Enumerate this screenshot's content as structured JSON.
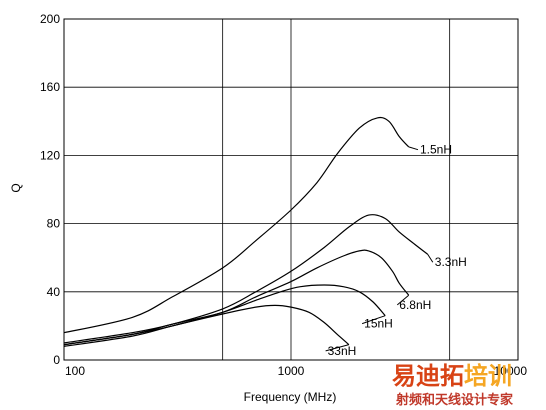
{
  "chart_data": {
    "type": "line",
    "xscale": "log",
    "xlim": [
      100,
      10000
    ],
    "ylim": [
      0,
      200
    ],
    "xlabel": "Frequency (MHz)",
    "ylabel": "Q",
    "x_ticks": [
      100,
      1000,
      10000
    ],
    "x_tick_labels": [
      "100",
      "1000",
      "10000"
    ],
    "y_ticks": [
      0,
      40,
      80,
      120,
      160,
      200
    ],
    "y_tick_labels": [
      "0",
      "40",
      "80",
      "120",
      "160",
      "200"
    ],
    "x_grid": [
      500,
      1000,
      5000
    ],
    "grid": true,
    "series": [
      {
        "name": "1.5nH",
        "points": [
          [
            100,
            16
          ],
          [
            200,
            25
          ],
          [
            300,
            37
          ],
          [
            500,
            54
          ],
          [
            700,
            70
          ],
          [
            1000,
            88
          ],
          [
            1300,
            104
          ],
          [
            1600,
            121
          ],
          [
            2000,
            136
          ],
          [
            2400,
            142
          ],
          [
            2700,
            140
          ],
          [
            3000,
            131
          ],
          [
            3300,
            125
          ]
        ]
      },
      {
        "name": "3.3nH",
        "points": [
          [
            100,
            10
          ],
          [
            200,
            16
          ],
          [
            300,
            21
          ],
          [
            500,
            30
          ],
          [
            700,
            40
          ],
          [
            1000,
            52
          ],
          [
            1400,
            66
          ],
          [
            1800,
            78
          ],
          [
            2200,
            85
          ],
          [
            2600,
            83
          ],
          [
            3000,
            75
          ],
          [
            3500,
            68
          ],
          [
            4000,
            62
          ]
        ]
      },
      {
        "name": "6.8nH",
        "points": [
          [
            100,
            9
          ],
          [
            200,
            15
          ],
          [
            300,
            21
          ],
          [
            500,
            28
          ],
          [
            700,
            37
          ],
          [
            1000,
            46
          ],
          [
            1300,
            54
          ],
          [
            1700,
            61
          ],
          [
            2000,
            64
          ],
          [
            2200,
            64
          ],
          [
            2500,
            60
          ],
          [
            2800,
            52
          ],
          [
            3000,
            45
          ],
          [
            3300,
            38
          ]
        ]
      },
      {
        "name": "15nH",
        "points": [
          [
            100,
            9
          ],
          [
            200,
            15
          ],
          [
            300,
            20
          ],
          [
            500,
            28
          ],
          [
            700,
            35
          ],
          [
            900,
            40
          ],
          [
            1100,
            43
          ],
          [
            1400,
            44
          ],
          [
            1700,
            43
          ],
          [
            2000,
            40
          ],
          [
            2300,
            34
          ],
          [
            2600,
            26
          ]
        ]
      },
      {
        "name": "33nH",
        "points": [
          [
            100,
            8
          ],
          [
            200,
            14
          ],
          [
            300,
            20
          ],
          [
            500,
            27
          ],
          [
            700,
            31
          ],
          [
            850,
            32
          ],
          [
            1000,
            31
          ],
          [
            1200,
            28
          ],
          [
            1400,
            22
          ],
          [
            1600,
            15
          ],
          [
            1800,
            9
          ]
        ]
      }
    ]
  },
  "watermark": {
    "main": "易迪拓培训",
    "sub": "射频和天线设计专家",
    "color_main": "#d84315",
    "color_accent": "#f5a623",
    "color_sub": "#c0392b"
  }
}
